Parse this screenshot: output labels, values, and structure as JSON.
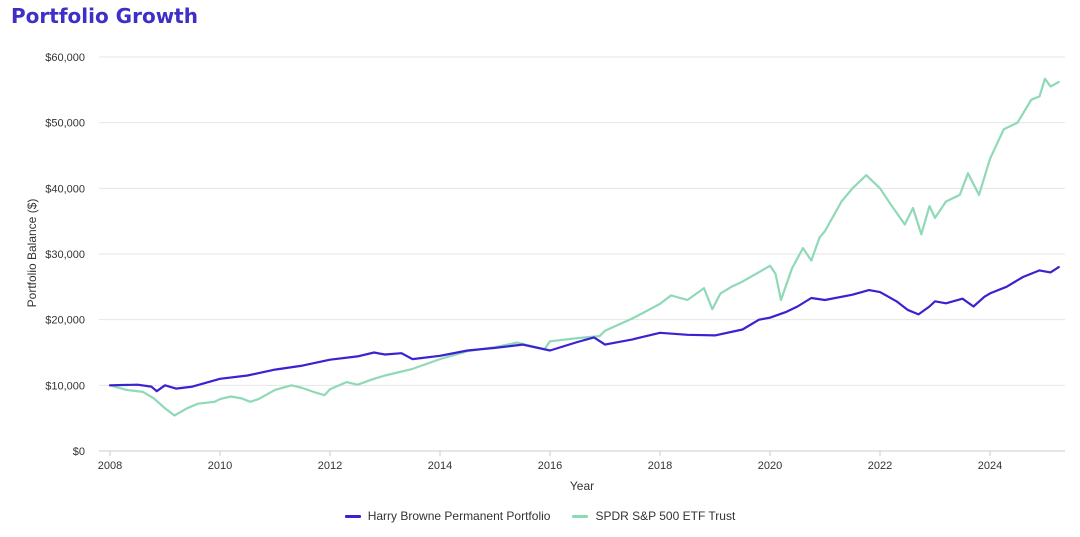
{
  "chart_data": {
    "type": "line",
    "title": "Portfolio Growth",
    "xlabel": "Year",
    "ylabel": "Portfolio Balance ($)",
    "xlim": [
      2008,
      2025.25
    ],
    "ylim": [
      0,
      60000
    ],
    "x_ticks": [
      2008,
      2010,
      2012,
      2014,
      2016,
      2018,
      2020,
      2022,
      2024
    ],
    "y_ticks": [
      0,
      10000,
      20000,
      30000,
      40000,
      50000,
      60000
    ],
    "y_tick_labels": [
      "$0",
      "$10,000",
      "$20,000",
      "$30,000",
      "$40,000",
      "$50,000",
      "$60,000"
    ],
    "grid": "horizontal",
    "legend_position": "bottom-center",
    "series": [
      {
        "name": "Harry Browne Permanent Portfolio",
        "color": "#3a22d1",
        "x": [
          2008,
          2008.5,
          2008.75,
          2008.85,
          2009,
          2009.2,
          2009.5,
          2010,
          2010.5,
          2011,
          2011.5,
          2012,
          2012.5,
          2012.8,
          2013,
          2013.3,
          2013.5,
          2014,
          2014.5,
          2015,
          2015.5,
          2016,
          2016.5,
          2016.8,
          2017,
          2017.5,
          2018,
          2018.5,
          2019,
          2019.5,
          2019.8,
          2020,
          2020.3,
          2020.5,
          2020.75,
          2021,
          2021.5,
          2021.8,
          2022,
          2022.3,
          2022.5,
          2022.7,
          2022.9,
          2023,
          2023.2,
          2023.5,
          2023.7,
          2023.9,
          2024,
          2024.3,
          2024.6,
          2024.9,
          2025.1,
          2025.25
        ],
        "values": [
          10000,
          10100,
          9800,
          9100,
          10000,
          9500,
          9800,
          11000,
          11500,
          12400,
          13000,
          13900,
          14400,
          15000,
          14700,
          14900,
          14000,
          14500,
          15300,
          15700,
          16200,
          15300,
          16600,
          17300,
          16200,
          17000,
          18000,
          17700,
          17600,
          18500,
          20000,
          20300,
          21200,
          22000,
          23300,
          23000,
          23800,
          24500,
          24200,
          22800,
          21500,
          20800,
          22000,
          22800,
          22500,
          23200,
          22000,
          23500,
          24000,
          25000,
          26500,
          27500,
          27200,
          28000
        ]
      },
      {
        "name": "SPDR S&P 500 ETF Trust",
        "color": "#8fd9b6",
        "x": [
          2008,
          2008.3,
          2008.6,
          2008.8,
          2009,
          2009.17,
          2009.4,
          2009.6,
          2009.9,
          2010,
          2010.2,
          2010.4,
          2010.55,
          2010.7,
          2011,
          2011.3,
          2011.5,
          2011.7,
          2011.9,
          2012,
          2012.3,
          2012.5,
          2012.8,
          2013,
          2013.5,
          2014,
          2014.5,
          2015,
          2015.4,
          2015.7,
          2015.9,
          2016,
          2016.5,
          2016.9,
          2017,
          2017.5,
          2018,
          2018.2,
          2018.5,
          2018.8,
          2018.95,
          2019.1,
          2019.3,
          2019.5,
          2019.75,
          2020,
          2020.1,
          2020.2,
          2020.4,
          2020.6,
          2020.75,
          2020.9,
          2021,
          2021.3,
          2021.5,
          2021.75,
          2022,
          2022.2,
          2022.45,
          2022.6,
          2022.75,
          2022.9,
          2023,
          2023.2,
          2023.45,
          2023.6,
          2023.8,
          2024,
          2024.25,
          2024.5,
          2024.75,
          2024.9,
          2025,
          2025.1,
          2025.25
        ],
        "values": [
          10000,
          9300,
          9000,
          8000,
          6500,
          5400,
          6500,
          7200,
          7500,
          7900,
          8300,
          8000,
          7500,
          7900,
          9300,
          10000,
          9600,
          9000,
          8500,
          9400,
          10500,
          10100,
          11000,
          11500,
          12500,
          14000,
          15200,
          15800,
          16500,
          15900,
          15500,
          16700,
          17200,
          17500,
          18300,
          20200,
          22400,
          23700,
          23000,
          24800,
          21600,
          24000,
          25000,
          25800,
          27000,
          28200,
          27000,
          23000,
          27800,
          30900,
          29000,
          32500,
          33500,
          38000,
          40000,
          42000,
          40000,
          37500,
          34500,
          37000,
          33000,
          37300,
          35500,
          38000,
          39000,
          42300,
          39000,
          44500,
          49000,
          50000,
          53500,
          54000,
          56700,
          55500,
          56200
        ]
      }
    ]
  }
}
